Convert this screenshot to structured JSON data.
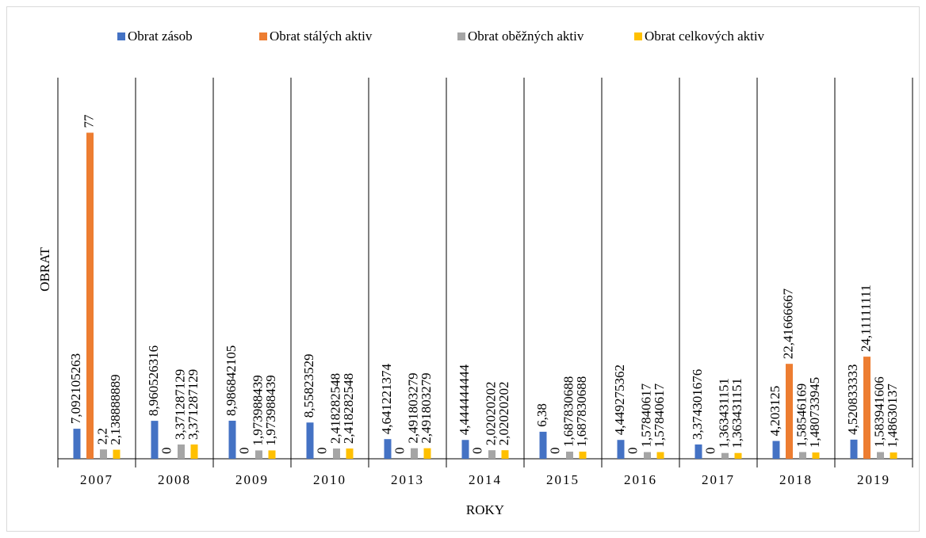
{
  "chart_data": {
    "type": "bar",
    "categories": [
      "2007",
      "2008",
      "2009",
      "2010",
      "2013",
      "2014",
      "2015",
      "2016",
      "2017",
      "2018",
      "2019"
    ],
    "x_label": "ROKY",
    "y_label": "OBRAT",
    "ylim": [
      0,
      90
    ],
    "legend": "top",
    "series": [
      {
        "name": "Obrat zásob",
        "color": "#4472c4",
        "values": [
          7.092105263,
          8.960526316,
          8.986842105,
          8.55823529,
          4.641221374,
          4.444444444,
          6.38,
          4.449275362,
          3.374301676,
          4.203125,
          4.520833333
        ],
        "value_labels": [
          "7,092105263",
          "8,960526316",
          "8,986842105",
          "8,55823529",
          "4,641221374",
          "4,444444444",
          "6,38",
          "4,449275362",
          "3,374301676",
          "4,203125",
          "4,520833333"
        ]
      },
      {
        "name": "Obrat stálých aktiv",
        "color": "#ed7d31",
        "values": [
          77,
          0,
          0,
          0,
          0,
          0,
          0,
          0,
          0,
          22.41666667,
          24.11111111
        ],
        "value_labels": [
          "77",
          "0",
          "0",
          "0",
          "0",
          "0",
          "0",
          "0",
          "0",
          "22,41666667",
          "24,11111111"
        ]
      },
      {
        "name": "Obrat oběžných aktiv",
        "color": "#a5a5a5",
        "values": [
          2.2,
          3.371287129,
          1.973988439,
          2.418282548,
          2.491803279,
          2.02020202,
          1.687830688,
          1.57840617,
          1.363431151,
          1.58546169,
          1.583941606
        ],
        "value_labels": [
          "2,2",
          "3,371287129",
          "1,973988439",
          "2,418282548",
          "2,491803279",
          "2,02020202",
          "1,687830688",
          "1,57840617",
          "1,363431151",
          "1,58546169",
          "1,583941606"
        ]
      },
      {
        "name": "Obrat celkových aktiv",
        "color": "#ffc000",
        "values": [
          2.138888889,
          3.371287129,
          1.973988439,
          2.418282548,
          2.491803279,
          2.02020202,
          1.687830688,
          1.57840617,
          1.363431151,
          1.480733945,
          1.48630137
        ],
        "value_labels": [
          "2,138888889",
          "3,371287129",
          "1,973988439",
          "2,418282548",
          "2,491803279",
          "2,02020202",
          "1,687830688",
          "1,57840617",
          "1,363431151",
          "1,480733945",
          "1,48630137"
        ]
      }
    ]
  }
}
